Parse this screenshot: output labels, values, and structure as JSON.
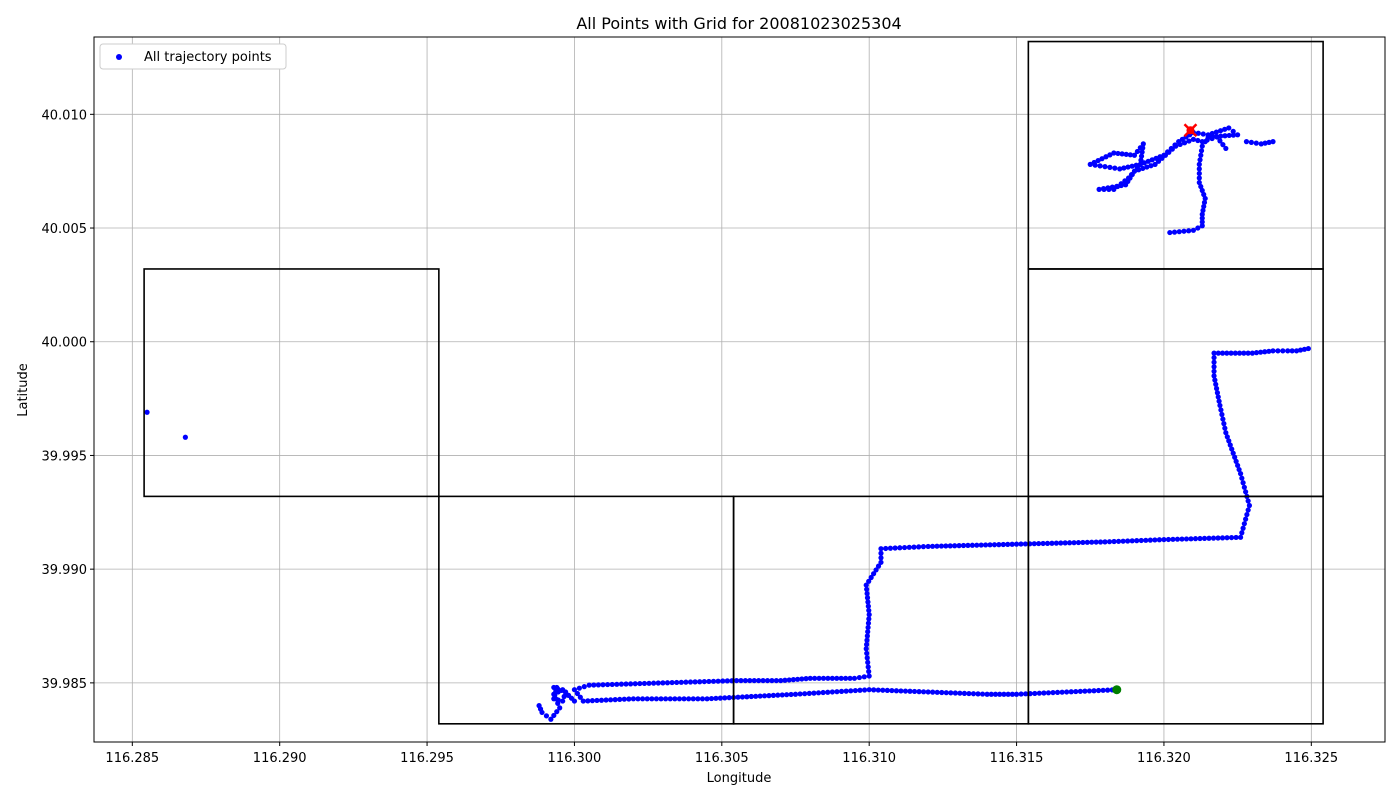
{
  "chart_data": {
    "type": "scatter",
    "title": "All Points with Grid for 20081023025304",
    "xlabel": "Longitude",
    "ylabel": "Latitude",
    "xlim": [
      116.2837,
      116.3275
    ],
    "ylim": [
      39.9824,
      40.0134
    ],
    "xticks": [
      116.285,
      116.29,
      116.295,
      116.3,
      116.305,
      116.31,
      116.315,
      116.32,
      116.325
    ],
    "xtick_labels": [
      "116.285",
      "116.290",
      "116.295",
      "116.300",
      "116.305",
      "116.310",
      "116.315",
      "116.320",
      "116.325"
    ],
    "yticks": [
      39.985,
      39.99,
      39.995,
      40.0,
      40.005,
      40.01
    ],
    "ytick_labels": [
      "39.985",
      "39.990",
      "39.995",
      "40.000",
      "40.005",
      "40.010"
    ],
    "grid": true,
    "legend": {
      "position": "top-left",
      "entries": [
        "All trajectory points"
      ]
    },
    "colors": {
      "points": "#0000ff",
      "start": "#008000",
      "end": "#ff0000",
      "cells": "#000000",
      "grid": "#b0b0b0"
    },
    "grid_cells": [
      {
        "lon": [
          116.3154,
          116.3254
        ],
        "lat": [
          40.0032,
          40.0132
        ]
      },
      {
        "lon": [
          116.2854,
          116.2954
        ],
        "lat": [
          39.9932,
          40.0032
        ]
      },
      {
        "lon": [
          116.3154,
          116.3254
        ],
        "lat": [
          39.9932,
          40.0032
        ]
      },
      {
        "lon": [
          116.2954,
          116.3054
        ],
        "lat": [
          39.9832,
          39.9932
        ]
      },
      {
        "lon": [
          116.3054,
          116.3154
        ],
        "lat": [
          39.9832,
          39.9932
        ]
      },
      {
        "lon": [
          116.3154,
          116.3254
        ],
        "lat": [
          39.9832,
          39.9932
        ]
      }
    ],
    "start_point": {
      "lon": 116.3184,
      "lat": 39.9847
    },
    "end_point": {
      "lon": 116.3209,
      "lat": 40.0093
    },
    "series": [
      {
        "name": "All trajectory points",
        "paths": [
          [
            [
              116.3184,
              39.9847
            ],
            [
              116.315,
              39.9845
            ],
            [
              116.314,
              39.9845
            ],
            [
              116.312,
              39.9846
            ],
            [
              116.31,
              39.9847
            ],
            [
              116.3075,
              39.9845
            ],
            [
              116.306,
              39.9844
            ],
            [
              116.3045,
              39.9843
            ],
            [
              116.302,
              39.9843
            ],
            [
              116.3003,
              39.9842
            ],
            [
              116.3,
              39.9847
            ],
            [
              116.3005,
              39.9849
            ],
            [
              116.303,
              39.985
            ],
            [
              116.3055,
              39.9851
            ],
            [
              116.307,
              39.9851
            ],
            [
              116.308,
              39.9852
            ],
            [
              116.3095,
              39.9852
            ],
            [
              116.31,
              39.9853
            ],
            [
              116.3099,
              39.9865
            ],
            [
              116.31,
              39.988
            ],
            [
              116.3099,
              39.9893
            ],
            [
              116.3104,
              39.9903
            ],
            [
              116.3104,
              39.9909
            ],
            [
              116.312,
              39.991
            ],
            [
              116.315,
              39.9911
            ],
            [
              116.318,
              39.9912
            ],
            [
              116.32,
              39.9913
            ],
            [
              116.3226,
              39.9914
            ],
            [
              116.3229,
              39.9928
            ],
            [
              116.3226,
              39.9942
            ],
            [
              116.3221,
              39.996
            ],
            [
              116.3219,
              39.9972
            ],
            [
              116.3217,
              39.9985
            ],
            [
              116.3217,
              39.9995
            ],
            [
              116.323,
              39.9995
            ],
            [
              116.3237,
              39.9996
            ],
            [
              116.3242,
              39.9996
            ],
            [
              116.3245,
              39.9996
            ],
            [
              116.3249,
              39.9997
            ]
          ],
          [
            [
              116.3,
              39.9842
            ],
            [
              116.2996,
              39.9847
            ],
            [
              116.2993,
              39.9845
            ],
            [
              116.2995,
              39.9839
            ],
            [
              116.2992,
              39.9834
            ],
            [
              116.2989,
              39.9837
            ],
            [
              116.2988,
              39.984
            ]
          ],
          [
            [
              116.2993,
              39.9848
            ],
            [
              116.2997,
              39.9846
            ],
            [
              116.2996,
              39.9842
            ],
            [
              116.2993,
              39.9843
            ],
            [
              116.2994,
              39.9848
            ]
          ],
          [
            [
              116.3202,
              40.0048
            ],
            [
              116.321,
              40.0049
            ],
            [
              116.3213,
              40.0051
            ],
            [
              116.3213,
              40.0056
            ],
            [
              116.3214,
              40.0063
            ],
            [
              116.3212,
              40.007
            ],
            [
              116.3212,
              40.0078
            ],
            [
              116.3213,
              40.0086
            ],
            [
              116.3215,
              40.009
            ],
            [
              116.3225,
              40.0091
            ],
            [
              116.3222,
              40.0094
            ],
            [
              116.3215,
              40.0091
            ],
            [
              116.321,
              40.0092
            ],
            [
              116.3205,
              40.0088
            ],
            [
              116.32,
              40.0082
            ],
            [
              116.3192,
              40.0078
            ],
            [
              116.3185,
              40.0076
            ],
            [
              116.318,
              40.0077
            ],
            [
              116.3175,
              40.0078
            ],
            [
              116.3183,
              40.0083
            ],
            [
              116.319,
              40.0082
            ],
            [
              116.3193,
              40.0087
            ],
            [
              116.3192,
              40.0078
            ],
            [
              116.3188,
              40.0072
            ],
            [
              116.3183,
              40.0067
            ],
            [
              116.3178,
              40.0067
            ],
            [
              116.3187,
              40.0069
            ],
            [
              116.319,
              40.0075
            ],
            [
              116.3197,
              40.0078
            ],
            [
              116.3204,
              40.0086
            ],
            [
              116.321,
              40.0089
            ],
            [
              116.3213,
              40.0088
            ],
            [
              116.3218,
              40.009
            ],
            [
              116.3221,
              40.0085
            ]
          ],
          [
            [
              116.3228,
              40.0088
            ],
            [
              116.3233,
              40.0087
            ],
            [
              116.3237,
              40.0088
            ]
          ],
          [
            [
              116.2855,
              39.9969
            ]
          ],
          [
            [
              116.2868,
              39.9958
            ]
          ]
        ]
      }
    ]
  }
}
